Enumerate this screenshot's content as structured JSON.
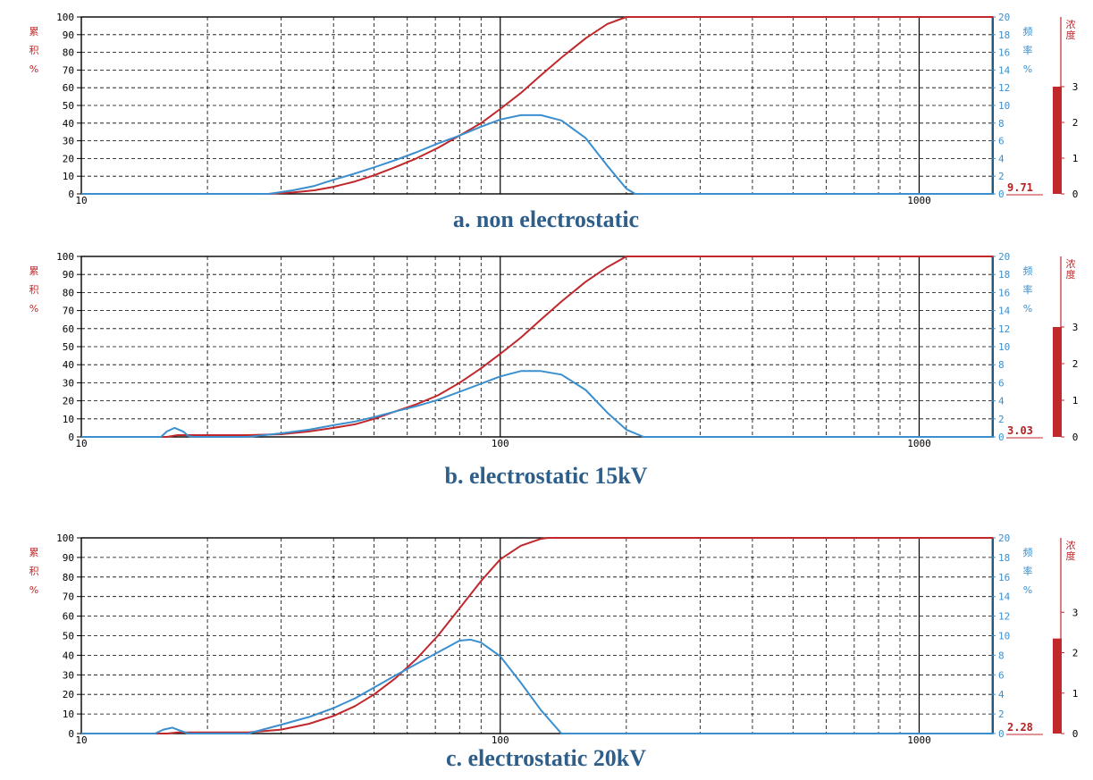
{
  "colors": {
    "cumulative": "#c0282c",
    "frequency": "#3b8fcf",
    "grid": "#000000",
    "caption": "#2e5f8a",
    "bar": "#c0282c"
  },
  "labels": {
    "left_axis": [
      "累",
      "积",
      "%"
    ],
    "right_axis": [
      "频",
      "率",
      "%"
    ],
    "conc_axis": [
      "浓",
      "度"
    ]
  },
  "chart_data": [
    {
      "type": "line",
      "caption": "a. non electrostatic",
      "x_scale": "log",
      "xlim": [
        10,
        1500
      ],
      "x_tick_labels": [
        {
          "value": 10,
          "label": "10"
        },
        {
          "value": 1000,
          "label": "1000"
        }
      ],
      "y_left": {
        "ylim": [
          0,
          100
        ],
        "ticks": [
          0,
          10,
          20,
          30,
          40,
          50,
          60,
          70,
          80,
          90,
          100
        ]
      },
      "y_right": {
        "ylim": [
          0,
          20
        ],
        "ticks": [
          0,
          2,
          4,
          6,
          8,
          10,
          12,
          14,
          16,
          18,
          20
        ]
      },
      "concentration": {
        "value_label": "9.71",
        "bar_level": 3.0,
        "scale": [
          0,
          4
        ],
        "ticks": [
          0,
          1,
          2,
          3
        ]
      },
      "series": [
        {
          "key": "cumulative",
          "axis": "left",
          "x": [
            10,
            28,
            32,
            36,
            40,
            45,
            50,
            56,
            63,
            71,
            80,
            90,
            100,
            112,
            125,
            140,
            160,
            180,
            200,
            1500
          ],
          "y": [
            0,
            0,
            0.8,
            2,
            4,
            7,
            10.5,
            15,
            20,
            26,
            33,
            40,
            48,
            57,
            67,
            77,
            88,
            96,
            100,
            100
          ]
        },
        {
          "key": "frequency",
          "axis": "right",
          "x": [
            10,
            28,
            32,
            36,
            40,
            45,
            50,
            56,
            63,
            71,
            80,
            90,
            100,
            112,
            125,
            140,
            160,
            180,
            200,
            210,
            1500
          ],
          "y": [
            0,
            0,
            0.4,
            0.9,
            1.6,
            2.3,
            3,
            3.8,
            4.7,
            5.7,
            6.6,
            7.6,
            8.4,
            8.9,
            8.9,
            8.3,
            6.3,
            3.2,
            0.6,
            0,
            0
          ]
        }
      ]
    },
    {
      "type": "line",
      "caption": "b. electrostatic 15kV",
      "x_scale": "log",
      "xlim": [
        10,
        1500
      ],
      "x_tick_labels": [
        {
          "value": 10,
          "label": "10"
        },
        {
          "value": 100,
          "label": "100"
        },
        {
          "value": 1000,
          "label": "1000"
        }
      ],
      "y_left": {
        "ylim": [
          0,
          100
        ],
        "ticks": [
          0,
          10,
          20,
          30,
          40,
          50,
          60,
          70,
          80,
          90,
          100
        ]
      },
      "y_right": {
        "ylim": [
          0,
          20
        ],
        "ticks": [
          0,
          2,
          4,
          6,
          8,
          10,
          12,
          14,
          16,
          18,
          20
        ]
      },
      "concentration": {
        "value_label": "3.03",
        "bar_level": 3.0,
        "scale": [
          0,
          4
        ],
        "ticks": [
          0,
          1,
          2,
          3
        ]
      },
      "series": [
        {
          "key": "cumulative",
          "axis": "left",
          "x": [
            10,
            16,
            17,
            18,
            25,
            30,
            35,
            40,
            45,
            50,
            56,
            63,
            71,
            80,
            90,
            100,
            112,
            125,
            140,
            160,
            180,
            200,
            1500
          ],
          "y": [
            0,
            0,
            1,
            1,
            1,
            1.5,
            3,
            5,
            7,
            10,
            14,
            18,
            23,
            30,
            38,
            46,
            55,
            65,
            75,
            86,
            94,
            100,
            100
          ]
        },
        {
          "key": "frequency",
          "axis": "right",
          "x": [
            10,
            15.5,
            16,
            16.7,
            17.5,
            18,
            18.5,
            25,
            30,
            35,
            40,
            45,
            50,
            56,
            63,
            71,
            80,
            90,
            100,
            112,
            125,
            140,
            160,
            180,
            200,
            220,
            1500
          ],
          "y": [
            0,
            0,
            0.6,
            1,
            0.6,
            0.1,
            0,
            0,
            0.4,
            0.8,
            1.3,
            1.7,
            2.2,
            2.8,
            3.4,
            4.1,
            5,
            5.9,
            6.7,
            7.3,
            7.3,
            6.9,
            5.2,
            2.7,
            0.8,
            0,
            0
          ]
        }
      ]
    },
    {
      "type": "line",
      "caption": "c. electrostatic 20kV",
      "x_scale": "log",
      "xlim": [
        10,
        1500
      ],
      "x_tick_labels": [
        {
          "value": 10,
          "label": "10"
        },
        {
          "value": 100,
          "label": "100"
        },
        {
          "value": 1000,
          "label": "1000"
        }
      ],
      "y_left": {
        "ylim": [
          0,
          100
        ],
        "ticks": [
          0,
          10,
          20,
          30,
          40,
          50,
          60,
          70,
          80,
          90,
          100
        ]
      },
      "y_right": {
        "ylim": [
          0,
          20
        ],
        "ticks": [
          0,
          2,
          4,
          6,
          8,
          10,
          12,
          14,
          16,
          18,
          20
        ]
      },
      "concentration": {
        "value_label": "2.28",
        "bar_level": 2.35,
        "scale": [
          0,
          4
        ],
        "ticks": [
          0,
          1,
          2,
          3
        ]
      },
      "series": [
        {
          "key": "cumulative",
          "axis": "left",
          "x": [
            10,
            16,
            17,
            25,
            30,
            35,
            40,
            45,
            50,
            56,
            63,
            71,
            80,
            90,
            100,
            112,
            125,
            130,
            1500
          ],
          "y": [
            0,
            0,
            0.6,
            0.6,
            2,
            5,
            9,
            14,
            20,
            28,
            38,
            50,
            64,
            78,
            89,
            96,
            99.5,
            100,
            100
          ]
        },
        {
          "key": "frequency",
          "axis": "right",
          "x": [
            10,
            15,
            15.7,
            16.5,
            17.2,
            18,
            25,
            30,
            35,
            40,
            45,
            50,
            56,
            63,
            71,
            80,
            85,
            90,
            100,
            112,
            125,
            140,
            1500
          ],
          "y": [
            0,
            0,
            0.4,
            0.6,
            0.3,
            0,
            0,
            0.9,
            1.7,
            2.6,
            3.6,
            4.7,
            5.9,
            7.1,
            8.3,
            9.5,
            9.6,
            9.3,
            7.9,
            5.2,
            2.4,
            0,
            0
          ]
        }
      ]
    }
  ]
}
